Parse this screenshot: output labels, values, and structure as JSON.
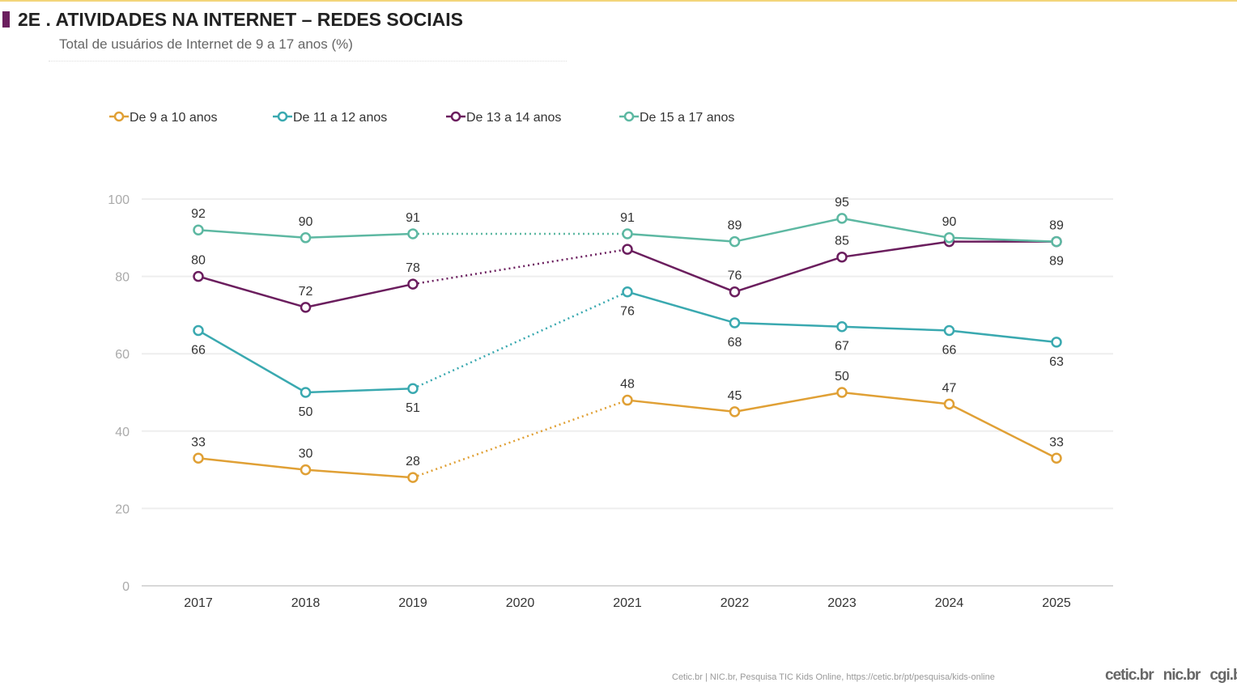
{
  "header": {
    "title": "2E . ATIVIDADES NA INTERNET – REDES SOCIAIS",
    "subtitle": "Total de usuários de Internet de 9 a 17 anos (%)"
  },
  "footer": {
    "source": "Cetic.br | NIC.br, Pesquisa TIC Kids Online, https://cetic.br/pt/pesquisa/kids-online",
    "logos": [
      "cetic.br",
      "nic.br",
      "cgi.br"
    ]
  },
  "chart_data": {
    "type": "line",
    "categories": [
      "2017",
      "2018",
      "2019",
      "2020",
      "2021",
      "2022",
      "2023",
      "2024",
      "2025"
    ],
    "ylim": [
      0,
      100
    ],
    "yticks": [
      0,
      20,
      40,
      60,
      80,
      100
    ],
    "grid": true,
    "legend_position": "top",
    "series": [
      {
        "name": "De 9 a 10 anos",
        "color": "#e0a035",
        "values": [
          33,
          30,
          28,
          null,
          48,
          45,
          50,
          47,
          33
        ],
        "labels": [
          "33",
          "30",
          "28",
          "",
          "48",
          "45",
          "50",
          "47",
          "33"
        ]
      },
      {
        "name": "De 11 a 12 anos",
        "color": "#3aa9b0",
        "values": [
          66,
          50,
          51,
          null,
          76,
          68,
          67,
          66,
          63
        ],
        "labels": [
          "66",
          "50",
          "51",
          "",
          "76",
          "68",
          "67",
          "66",
          "63"
        ]
      },
      {
        "name": "De 13 a 14 anos",
        "color": "#6b1e5e",
        "values": [
          80,
          72,
          78,
          null,
          87,
          76,
          85,
          89,
          89
        ],
        "labels": [
          "80",
          "72",
          "78",
          "",
          "",
          "76",
          "85",
          "",
          "89"
        ]
      },
      {
        "name": "De 15 a 17 anos",
        "color": "#5db8a2",
        "values": [
          92,
          90,
          91,
          null,
          91,
          89,
          95,
          90,
          89
        ],
        "labels": [
          "92",
          "90",
          "91",
          "",
          "91",
          "89",
          "95",
          "90",
          "89"
        ]
      }
    ]
  }
}
